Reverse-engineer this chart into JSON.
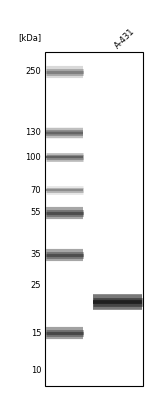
{
  "background_color": "#ffffff",
  "title": "[kDa]",
  "sample_label": "A-431",
  "fig_width": 1.47,
  "fig_height": 4.0,
  "dpi": 100,
  "ladder_bands": [
    {
      "kda": 250,
      "darkness": 0.5,
      "thickness": 3.5
    },
    {
      "kda": 130,
      "darkness": 0.6,
      "thickness": 3.0
    },
    {
      "kda": 100,
      "darkness": 0.62,
      "thickness": 2.5
    },
    {
      "kda": 70,
      "darkness": 0.45,
      "thickness": 2.5
    },
    {
      "kda": 55,
      "darkness": 0.7,
      "thickness": 3.5
    },
    {
      "kda": 35,
      "darkness": 0.7,
      "thickness": 3.5
    },
    {
      "kda": 15,
      "darkness": 0.72,
      "thickness": 3.5
    }
  ],
  "sample_bands": [
    {
      "kda": 21,
      "darkness": 0.88,
      "thickness": 4.5
    }
  ],
  "kda_labels": [
    250,
    130,
    100,
    70,
    55,
    35,
    25,
    15,
    10
  ],
  "ymin": 8.5,
  "ymax": 310,
  "label_fontsize": 6.0,
  "title_fontsize": 6.0,
  "sample_fontsize": 6.0
}
